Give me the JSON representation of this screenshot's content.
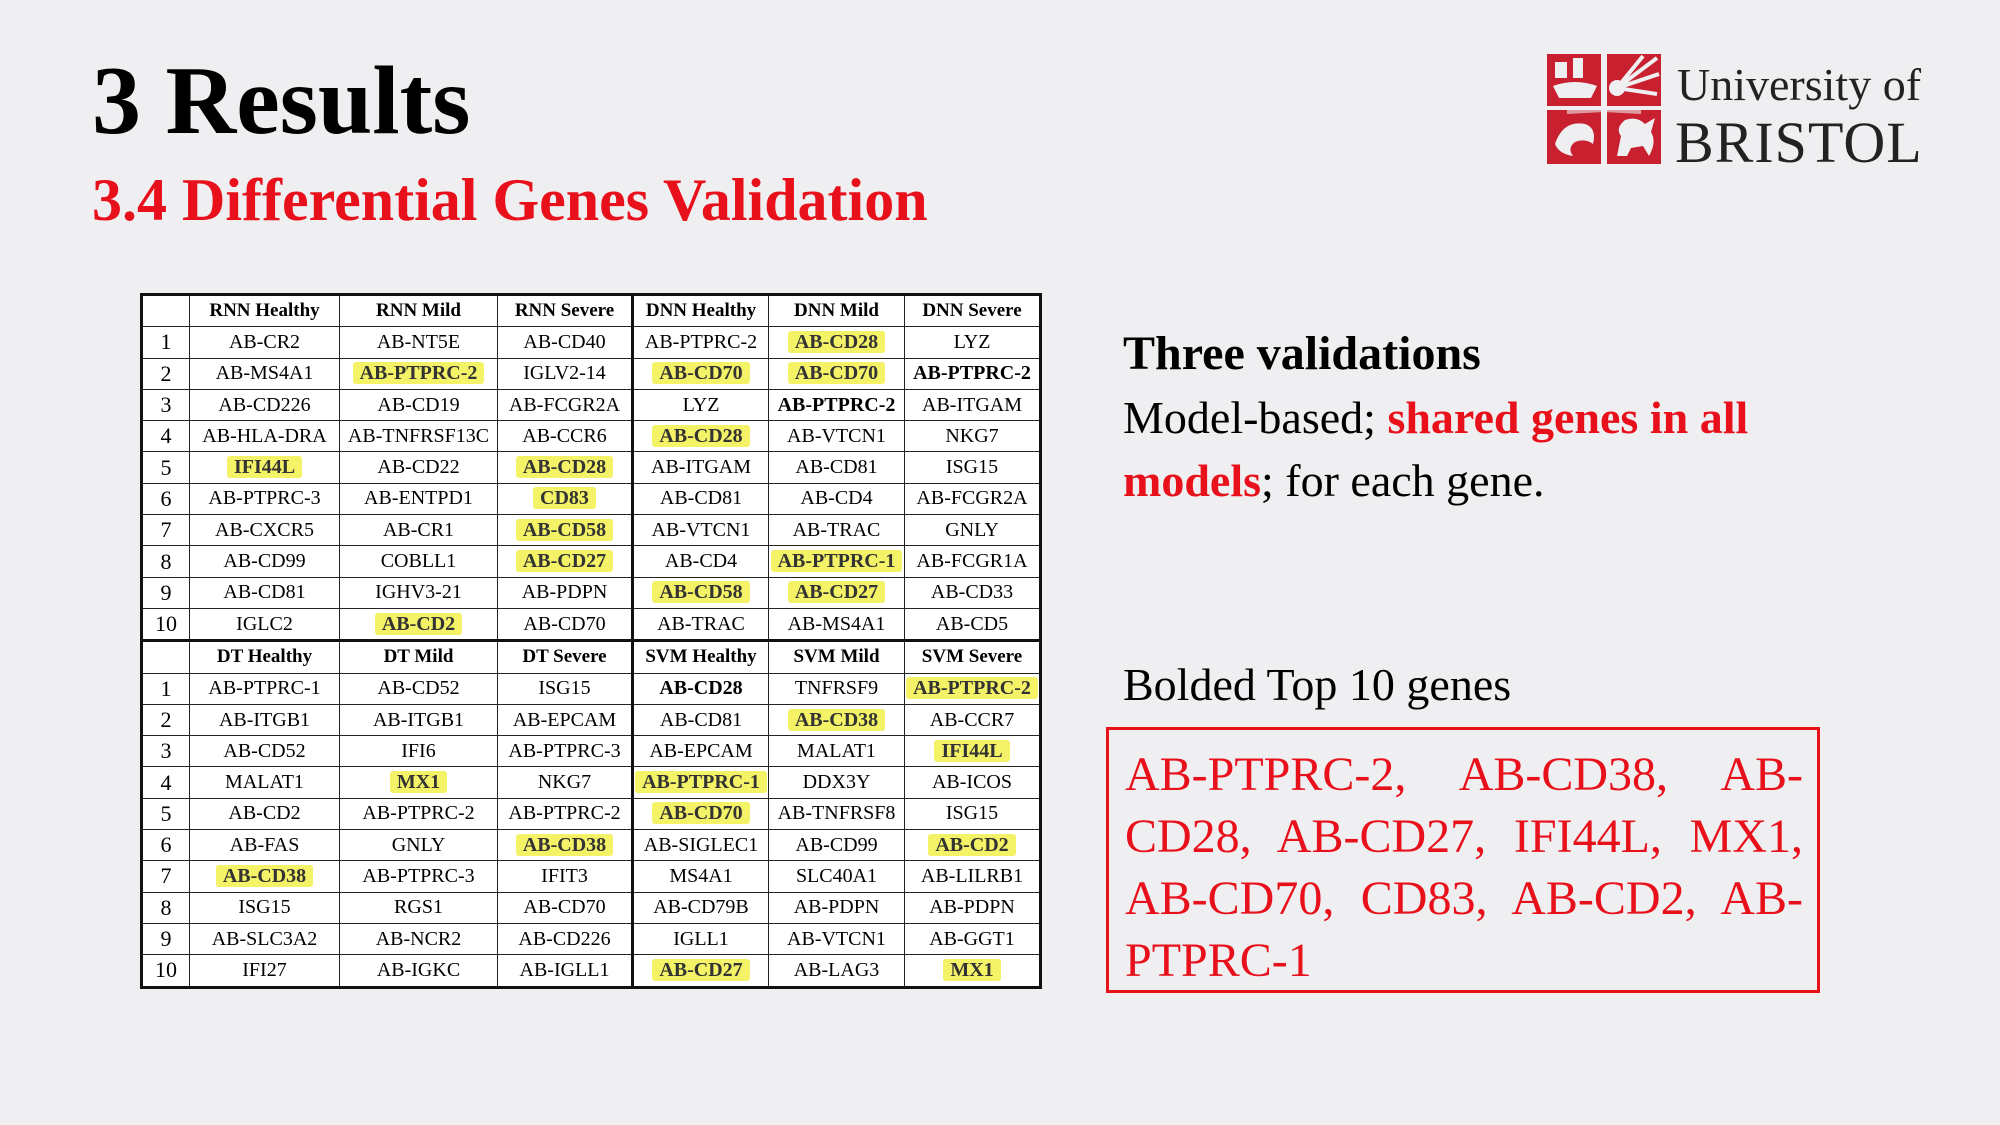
{
  "header": {
    "title": "3 Results",
    "subtitle": "3.4 Differential Genes Validation"
  },
  "logo": {
    "line1": "University of",
    "line2": "BRISTOL",
    "brand_color": "#c8202e"
  },
  "colors": {
    "accent_red": "#e8101a",
    "highlight_yellow": "#f4f267"
  },
  "table": {
    "sections": [
      {
        "headers": [
          "RNN Healthy",
          "RNN Mild",
          "RNN Severe",
          "DNN Healthy",
          "DNN Mild",
          "DNN Severe"
        ],
        "rows": [
          {
            "idx": "1",
            "cells": [
              {
                "t": "AB-CR2"
              },
              {
                "t": "AB-NT5E"
              },
              {
                "t": "AB-CD40"
              },
              {
                "t": "AB-PTPRC-2"
              },
              {
                "t": "AB-CD28",
                "hl": true
              },
              {
                "t": "LYZ"
              }
            ]
          },
          {
            "idx": "2",
            "cells": [
              {
                "t": "AB-MS4A1"
              },
              {
                "t": "AB-PTPRC-2",
                "hl": true
              },
              {
                "t": "IGLV2-14"
              },
              {
                "t": "AB-CD70",
                "hl": true
              },
              {
                "t": "AB-CD70",
                "hl": true
              },
              {
                "t": "AB-PTPRC-2",
                "b": true
              }
            ]
          },
          {
            "idx": "3",
            "cells": [
              {
                "t": "AB-CD226"
              },
              {
                "t": "AB-CD19"
              },
              {
                "t": "AB-FCGR2A"
              },
              {
                "t": "LYZ"
              },
              {
                "t": "AB-PTPRC-2",
                "b": true
              },
              {
                "t": "AB-ITGAM"
              }
            ]
          },
          {
            "idx": "4",
            "cells": [
              {
                "t": "AB-HLA-DRA"
              },
              {
                "t": "AB-TNFRSF13C"
              },
              {
                "t": "AB-CCR6"
              },
              {
                "t": "AB-CD28",
                "hl": true
              },
              {
                "t": "AB-VTCN1"
              },
              {
                "t": "NKG7"
              }
            ]
          },
          {
            "idx": "5",
            "cells": [
              {
                "t": "IFI44L",
                "hl": true
              },
              {
                "t": "AB-CD22"
              },
              {
                "t": "AB-CD28",
                "hl": true
              },
              {
                "t": "AB-ITGAM"
              },
              {
                "t": "AB-CD81"
              },
              {
                "t": "ISG15"
              }
            ]
          },
          {
            "idx": "6",
            "cells": [
              {
                "t": "AB-PTPRC-3"
              },
              {
                "t": "AB-ENTPD1"
              },
              {
                "t": "CD83",
                "hl": true
              },
              {
                "t": "AB-CD81"
              },
              {
                "t": "AB-CD4"
              },
              {
                "t": "AB-FCGR2A"
              }
            ]
          },
          {
            "idx": "7",
            "cells": [
              {
                "t": "AB-CXCR5"
              },
              {
                "t": "AB-CR1"
              },
              {
                "t": "AB-CD58",
                "hl": true
              },
              {
                "t": "AB-VTCN1"
              },
              {
                "t": "AB-TRAC"
              },
              {
                "t": "GNLY"
              }
            ]
          },
          {
            "idx": "8",
            "cells": [
              {
                "t": "AB-CD99"
              },
              {
                "t": "COBLL1"
              },
              {
                "t": "AB-CD27",
                "hl": true
              },
              {
                "t": "AB-CD4"
              },
              {
                "t": "AB-PTPRC-1",
                "hl": true
              },
              {
                "t": "AB-FCGR1A"
              }
            ]
          },
          {
            "idx": "9",
            "cells": [
              {
                "t": "AB-CD81"
              },
              {
                "t": "IGHV3-21"
              },
              {
                "t": "AB-PDPN"
              },
              {
                "t": "AB-CD58",
                "hl": true
              },
              {
                "t": "AB-CD27",
                "hl": true
              },
              {
                "t": "AB-CD33"
              }
            ]
          },
          {
            "idx": "10",
            "cells": [
              {
                "t": "IGLC2"
              },
              {
                "t": "AB-CD2",
                "hl": true
              },
              {
                "t": "AB-CD70"
              },
              {
                "t": "AB-TRAC"
              },
              {
                "t": "AB-MS4A1"
              },
              {
                "t": "AB-CD5"
              }
            ]
          }
        ]
      },
      {
        "headers": [
          "DT Healthy",
          "DT Mild",
          "DT Severe",
          "SVM Healthy",
          "SVM Mild",
          "SVM Severe"
        ],
        "rows": [
          {
            "idx": "1",
            "cells": [
              {
                "t": "AB-PTPRC-1"
              },
              {
                "t": "AB-CD52"
              },
              {
                "t": "ISG15"
              },
              {
                "t": "AB-CD28",
                "b": true
              },
              {
                "t": "TNFRSF9"
              },
              {
                "t": "AB-PTPRC-2",
                "hl": true
              }
            ]
          },
          {
            "idx": "2",
            "cells": [
              {
                "t": "AB-ITGB1"
              },
              {
                "t": "AB-ITGB1"
              },
              {
                "t": "AB-EPCAM"
              },
              {
                "t": "AB-CD81"
              },
              {
                "t": "AB-CD38",
                "hl": true
              },
              {
                "t": "AB-CCR7"
              }
            ]
          },
          {
            "idx": "3",
            "cells": [
              {
                "t": "AB-CD52"
              },
              {
                "t": "IFI6"
              },
              {
                "t": "AB-PTPRC-3"
              },
              {
                "t": "AB-EPCAM"
              },
              {
                "t": "MALAT1"
              },
              {
                "t": "IFI44L",
                "hl": true
              }
            ]
          },
          {
            "idx": "4",
            "cells": [
              {
                "t": "MALAT1"
              },
              {
                "t": "MX1",
                "hl": true
              },
              {
                "t": "NKG7"
              },
              {
                "t": "AB-PTPRC-1",
                "hl": true
              },
              {
                "t": "DDX3Y"
              },
              {
                "t": "AB-ICOS"
              }
            ]
          },
          {
            "idx": "5",
            "cells": [
              {
                "t": "AB-CD2"
              },
              {
                "t": "AB-PTPRC-2"
              },
              {
                "t": "AB-PTPRC-2"
              },
              {
                "t": "AB-CD70",
                "hl": true
              },
              {
                "t": "AB-TNFRSF8"
              },
              {
                "t": "ISG15"
              }
            ]
          },
          {
            "idx": "6",
            "cells": [
              {
                "t": "AB-FAS"
              },
              {
                "t": "GNLY"
              },
              {
                "t": "AB-CD38",
                "hl": true
              },
              {
                "t": "AB-SIGLEC1"
              },
              {
                "t": "AB-CD99"
              },
              {
                "t": "AB-CD2",
                "hl": true
              }
            ]
          },
          {
            "idx": "7",
            "cells": [
              {
                "t": "AB-CD38",
                "hl": true
              },
              {
                "t": "AB-PTPRC-3"
              },
              {
                "t": "IFIT3"
              },
              {
                "t": "MS4A1"
              },
              {
                "t": "SLC40A1"
              },
              {
                "t": "AB-LILRB1"
              }
            ]
          },
          {
            "idx": "8",
            "cells": [
              {
                "t": "ISG15"
              },
              {
                "t": "RGS1"
              },
              {
                "t": "AB-CD70"
              },
              {
                "t": "AB-CD79B"
              },
              {
                "t": "AB-PDPN"
              },
              {
                "t": "AB-PDPN"
              }
            ]
          },
          {
            "idx": "9",
            "cells": [
              {
                "t": "AB-SLC3A2"
              },
              {
                "t": "AB-NCR2"
              },
              {
                "t": "AB-CD226"
              },
              {
                "t": "IGLL1"
              },
              {
                "t": "AB-VTCN1"
              },
              {
                "t": "AB-GGT1"
              }
            ]
          },
          {
            "idx": "10",
            "cells": [
              {
                "t": "IFI27"
              },
              {
                "t": "AB-IGKC"
              },
              {
                "t": "AB-IGLL1"
              },
              {
                "t": "AB-CD27",
                "hl": true
              },
              {
                "t": "AB-LAG3"
              },
              {
                "t": "MX1",
                "hl": true
              }
            ]
          }
        ]
      }
    ]
  },
  "validations": {
    "heading": "Three validations",
    "part1": "Model-based; ",
    "part2": "shared genes in all models",
    "part3": "; for each gene."
  },
  "top_genes": {
    "heading": "Bolded Top 10 genes",
    "list_text": "AB-PTPRC-2, AB-CD38, AB-CD28, AB-CD27, IFI44L, MX1, AB-CD70, CD83, AB-CD2, AB-PTPRC-1"
  }
}
